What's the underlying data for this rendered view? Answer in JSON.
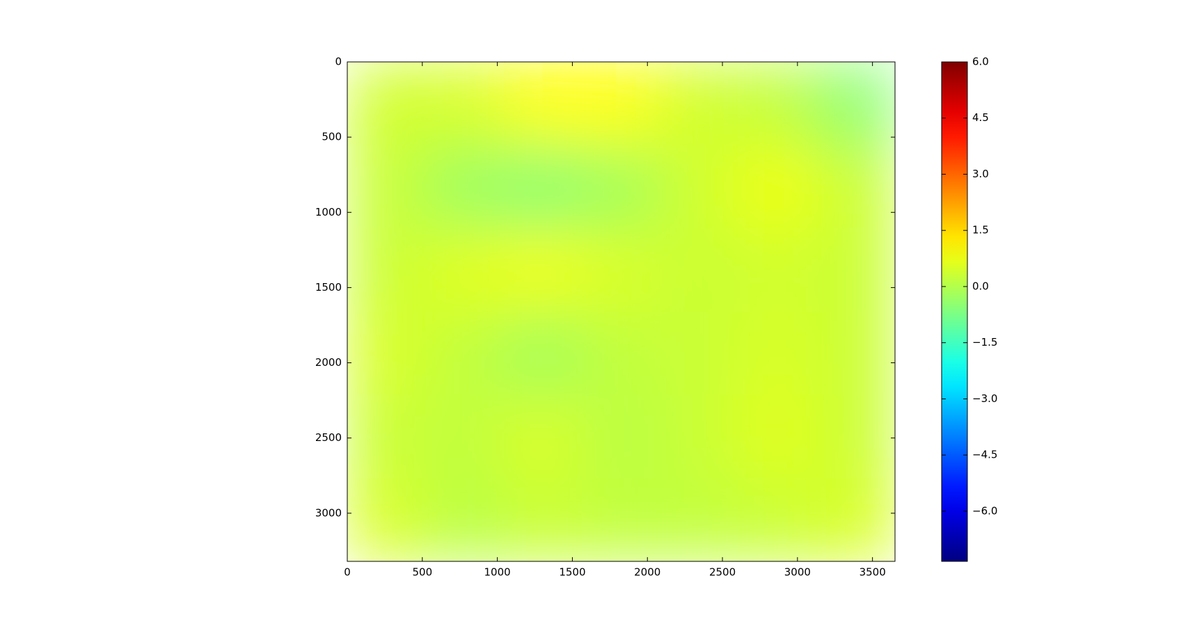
{
  "chart_data": {
    "type": "heatmap",
    "xlim": [
      0,
      3650
    ],
    "xticks": [
      0,
      500,
      1000,
      1500,
      2000,
      2500,
      3000,
      3500
    ],
    "ylim": [
      3320,
      0
    ],
    "yticks": [
      0,
      500,
      1000,
      1500,
      2000,
      2500,
      3000
    ],
    "z": [
      [
        0.4,
        0.5,
        1.0,
        1.0,
        0.4,
        0.2,
        -0.5
      ],
      [
        0.3,
        -0.3,
        -0.5,
        -0.2,
        0.4,
        0.8,
        0.3
      ],
      [
        0.3,
        0.6,
        0.8,
        0.5,
        0.3,
        0.4,
        0.3
      ],
      [
        0.5,
        0.2,
        -0.2,
        0.2,
        0.3,
        0.5,
        0.3
      ],
      [
        0.3,
        0.2,
        0.5,
        0.1,
        0.3,
        0.6,
        0.3
      ],
      [
        0.5,
        0.1,
        0.3,
        0.2,
        0.2,
        0.3,
        0.5
      ]
    ],
    "colormap": "jet",
    "clim": [
      -7.34,
      6.0
    ],
    "cticks": [
      {
        "value": 6,
        "label": "6.0"
      },
      {
        "value": 4.5,
        "label": "4.5"
      },
      {
        "value": 3,
        "label": "3.0"
      },
      {
        "value": 1.5,
        "label": "1.5"
      },
      {
        "value": 0,
        "label": "0.0"
      },
      {
        "value": -1.5,
        "label": "−1.5"
      },
      {
        "value": -3,
        "label": "−3.0"
      },
      {
        "value": -4.5,
        "label": "−4.5"
      },
      {
        "value": -6,
        "label": "−6.0"
      }
    ]
  }
}
